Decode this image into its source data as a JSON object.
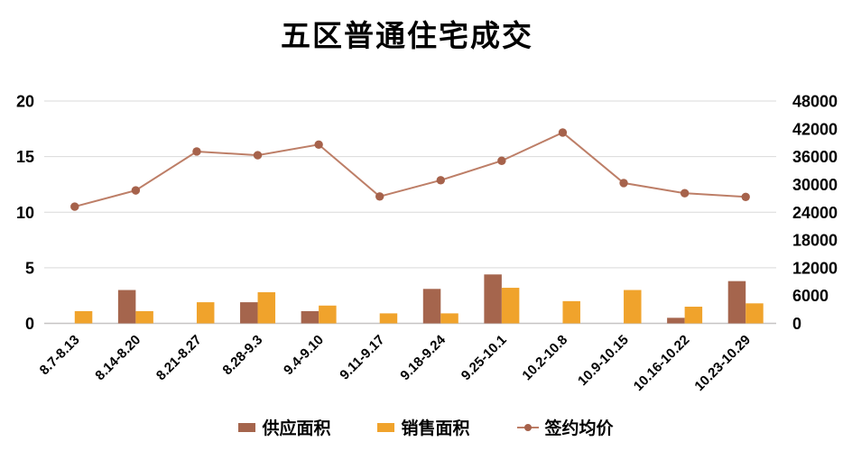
{
  "chart_data": {
    "type": "bar+line combo",
    "title": "五区普通住宅成交",
    "categories": [
      "8.7-8.13",
      "8.14-8.20",
      "8.21-8.27",
      "8.28-9.3",
      "9.4-9.10",
      "9.11-9.17",
      "9.18-9.24",
      "9.25-10.1",
      "10.2-10.8",
      "10.9-10.15",
      "10.16-10.22",
      "10.23-10.29"
    ],
    "series": [
      {
        "name": "供应面积",
        "type": "bar",
        "axis": "left",
        "color": "#A5654D",
        "values": [
          0,
          3.0,
          0,
          1.9,
          1.1,
          0,
          3.1,
          4.4,
          0,
          0,
          0.5,
          3.8
        ]
      },
      {
        "name": "销售面积",
        "type": "bar",
        "axis": "left",
        "color": "#F0A32C",
        "values": [
          1.1,
          1.1,
          1.9,
          2.8,
          1.6,
          0.9,
          0.9,
          3.2,
          2.0,
          3.0,
          1.5,
          1.8
        ]
      },
      {
        "name": "签约均价",
        "type": "line",
        "axis": "right",
        "color": "#BD7E67",
        "marker_color": "#A6624B",
        "values": [
          25200,
          28700,
          37100,
          36300,
          38600,
          27400,
          30900,
          35100,
          41200,
          30300,
          28100,
          27300
        ]
      }
    ],
    "left_axis": {
      "min": 0,
      "max": 20,
      "ticks": [
        0,
        5,
        10,
        15,
        20
      ]
    },
    "right_axis": {
      "min": 0,
      "max": 48000,
      "ticks": [
        0,
        6000,
        12000,
        18000,
        24000,
        30000,
        36000,
        42000,
        48000
      ]
    },
    "grid": {
      "show": true,
      "color": "#D9D9D9",
      "axis_line_color": "#C6C4C4"
    },
    "legend": {
      "position": "bottom"
    }
  }
}
